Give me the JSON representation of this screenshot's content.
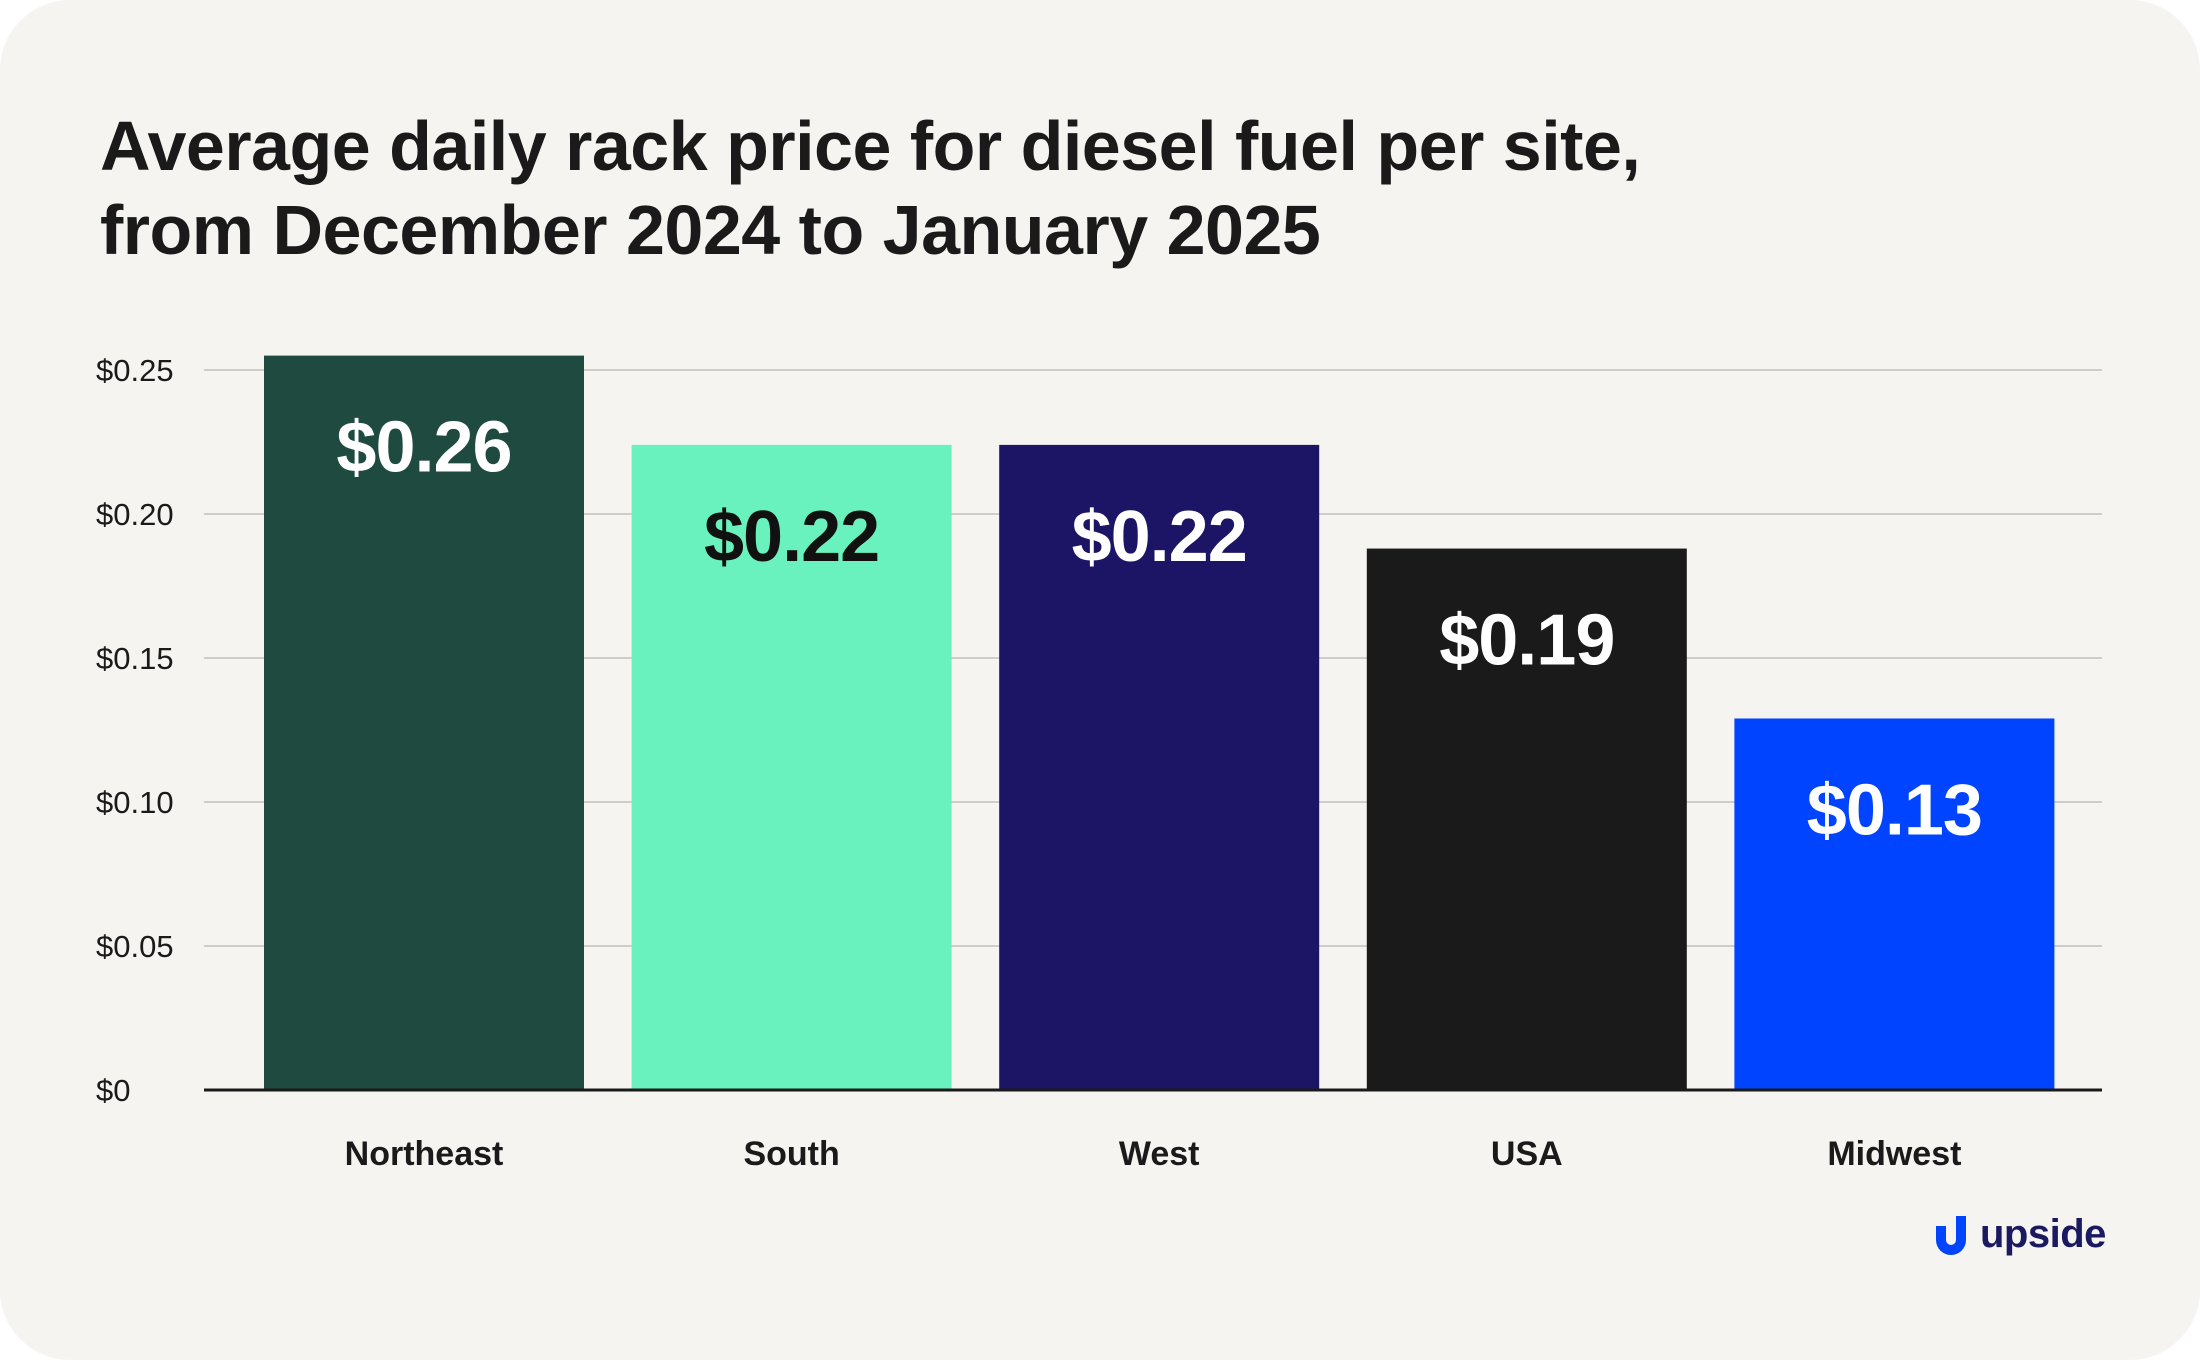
{
  "title_lines": [
    "Average daily rack price for diesel fuel per site,",
    "from December 2024 to January 2025"
  ],
  "brand": {
    "name": "upside",
    "color": "#1b1a60",
    "mark_color": "#0044ff"
  },
  "chart_data": {
    "type": "bar",
    "title": "Average daily rack price for diesel fuel per site, from December 2024 to January 2025",
    "xlabel": "",
    "ylabel": "",
    "categories": [
      "Northeast",
      "South",
      "West",
      "USA",
      "Midwest"
    ],
    "values": [
      0.255,
      0.224,
      0.224,
      0.188,
      0.129
    ],
    "data_labels": [
      "$0.26",
      "$0.22",
      "$0.22",
      "$0.19",
      "$0.13"
    ],
    "bar_colors": [
      "#1f4a40",
      "#69f2bd",
      "#1c1565",
      "#1a1a1a",
      "#0044ff"
    ],
    "label_colors": [
      "#ffffff",
      "#111111",
      "#ffffff",
      "#ffffff",
      "#ffffff"
    ],
    "ylim": [
      0,
      0.25
    ],
    "yticks": [
      0,
      0.05,
      0.1,
      0.15,
      0.2,
      0.25
    ],
    "ytick_labels": [
      "$0",
      "$0.05",
      "$0.10",
      "$0.15",
      "$0.20",
      "$0.25"
    ],
    "grid": true,
    "legend": "none"
  }
}
